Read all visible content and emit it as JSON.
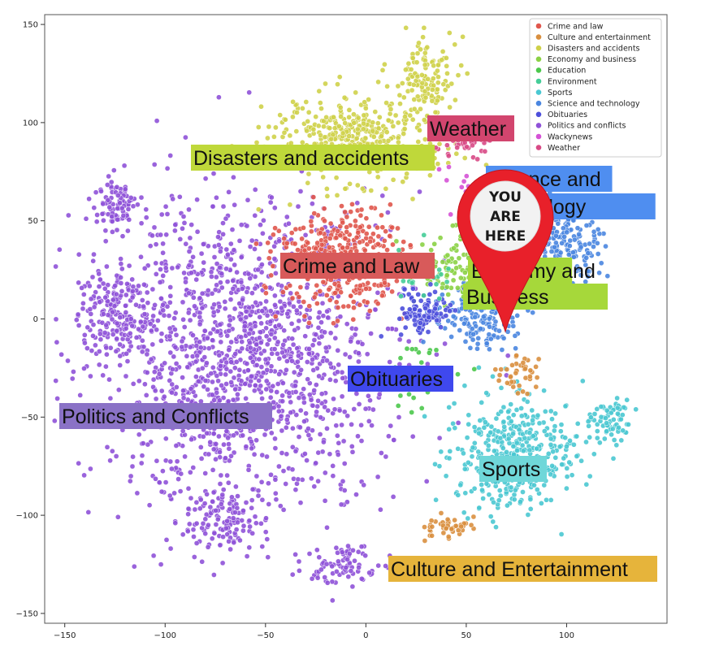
{
  "chart_data": {
    "type": "scatter",
    "title": "",
    "xlabel": "",
    "ylabel": "",
    "xlim": [
      -160,
      150
    ],
    "ylim": [
      -155,
      155
    ],
    "x_ticks": [
      -150,
      -100,
      -50,
      0,
      50,
      100
    ],
    "y_ticks": [
      -150,
      -100,
      -50,
      0,
      50,
      100,
      150
    ],
    "grid": false,
    "legend_position": "top-right",
    "series": [
      {
        "name": "Crime and law",
        "color": "#e0574d"
      },
      {
        "name": "Culture and entertainment",
        "color": "#d98f3f"
      },
      {
        "name": "Disasters and accidents",
        "color": "#cfd14a"
      },
      {
        "name": "Economy and business",
        "color": "#8bd145"
      },
      {
        "name": "Education",
        "color": "#4cc84c"
      },
      {
        "name": "Environment",
        "color": "#45cd98"
      },
      {
        "name": "Sports",
        "color": "#4ac8d2"
      },
      {
        "name": "Science and technology",
        "color": "#4a86e0"
      },
      {
        "name": "Obituaries",
        "color": "#4d4fdb"
      },
      {
        "name": "Politics and conflicts",
        "color": "#8f52d8"
      },
      {
        "name": "Wackynews",
        "color": "#d552d6"
      },
      {
        "name": "Weather",
        "color": "#d84a86"
      }
    ],
    "clusters": [
      {
        "text": "Politics and Conflicts",
        "series": 9,
        "x": -140,
        "y": -130,
        "bg": "#8a72c6",
        "spread": 1.0
      },
      {
        "text": "Disasters and accidents",
        "series": 2,
        "x": 20,
        "y": 115,
        "bg": "#bfd83a",
        "spread": 0.7
      },
      {
        "text": "Crime and Law",
        "series": 0,
        "x": -10,
        "y": 35,
        "bg": "#d85a5a",
        "spread": 0.6
      },
      {
        "text": "Weather",
        "series": 11,
        "x": 40,
        "y": 90,
        "bg": "#d2456e",
        "spread": 0.35
      },
      {
        "text": "Science and Technology",
        "series": 7,
        "x": 110,
        "y": 35,
        "bg": "#4f8ef0",
        "spread": 0.6
      },
      {
        "text": "Economy and Business",
        "series": 3,
        "x": 60,
        "y": 5,
        "bg": "#a6d83a",
        "spread": 0.55
      },
      {
        "text": "Obituaries",
        "series": 8,
        "x": 25,
        "y": -15,
        "bg": "#3f48ee",
        "spread": 0.4
      },
      {
        "text": "Sports",
        "series": 6,
        "x": 75,
        "y": -65,
        "bg": "#6fd7d9",
        "spread": 0.8
      },
      {
        "text": "Culture and Entertainment",
        "series": 1,
        "x": 35,
        "y": -115,
        "bg": "#e6b43b",
        "spread": 0.45
      }
    ],
    "pin": {
      "text": [
        "YOU",
        "ARE",
        "HERE"
      ],
      "x": 68,
      "y": -10
    }
  }
}
